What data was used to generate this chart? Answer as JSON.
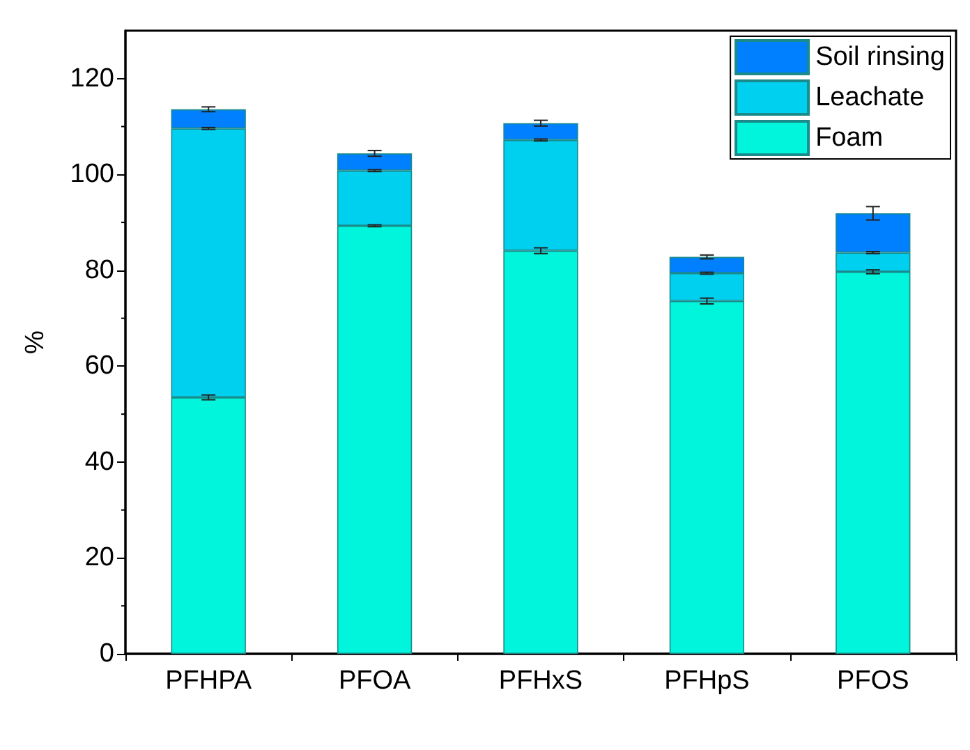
{
  "chart_data": {
    "type": "bar",
    "stacked": true,
    "ylabel": "%",
    "categories": [
      "PFHPA",
      "PFOA",
      "PFHxS",
      "PFHpS",
      "PFOS"
    ],
    "series": [
      {
        "name": "Foam",
        "color": "#00f5dc",
        "values": [
          53.5,
          89.3,
          84.1,
          73.6,
          79.7
        ],
        "errors": [
          0.5,
          0.2,
          0.6,
          0.6,
          0.4
        ]
      },
      {
        "name": "Leachate",
        "color": "#00d0f0",
        "values": [
          56.1,
          11.5,
          23.1,
          5.8,
          4.0
        ],
        "errors": [
          0.2,
          0.2,
          0.2,
          0.2,
          0.2
        ]
      },
      {
        "name": "Soil rinsing",
        "color": "#0080ff",
        "values": [
          4.0,
          3.6,
          3.5,
          3.4,
          8.2
        ],
        "errors": [
          0.5,
          0.6,
          0.6,
          0.4,
          1.4
        ]
      }
    ],
    "ylim": [
      0,
      130
    ],
    "yticks": [
      0,
      20,
      40,
      60,
      80,
      100,
      120
    ],
    "grid": false,
    "legend": "top right"
  }
}
